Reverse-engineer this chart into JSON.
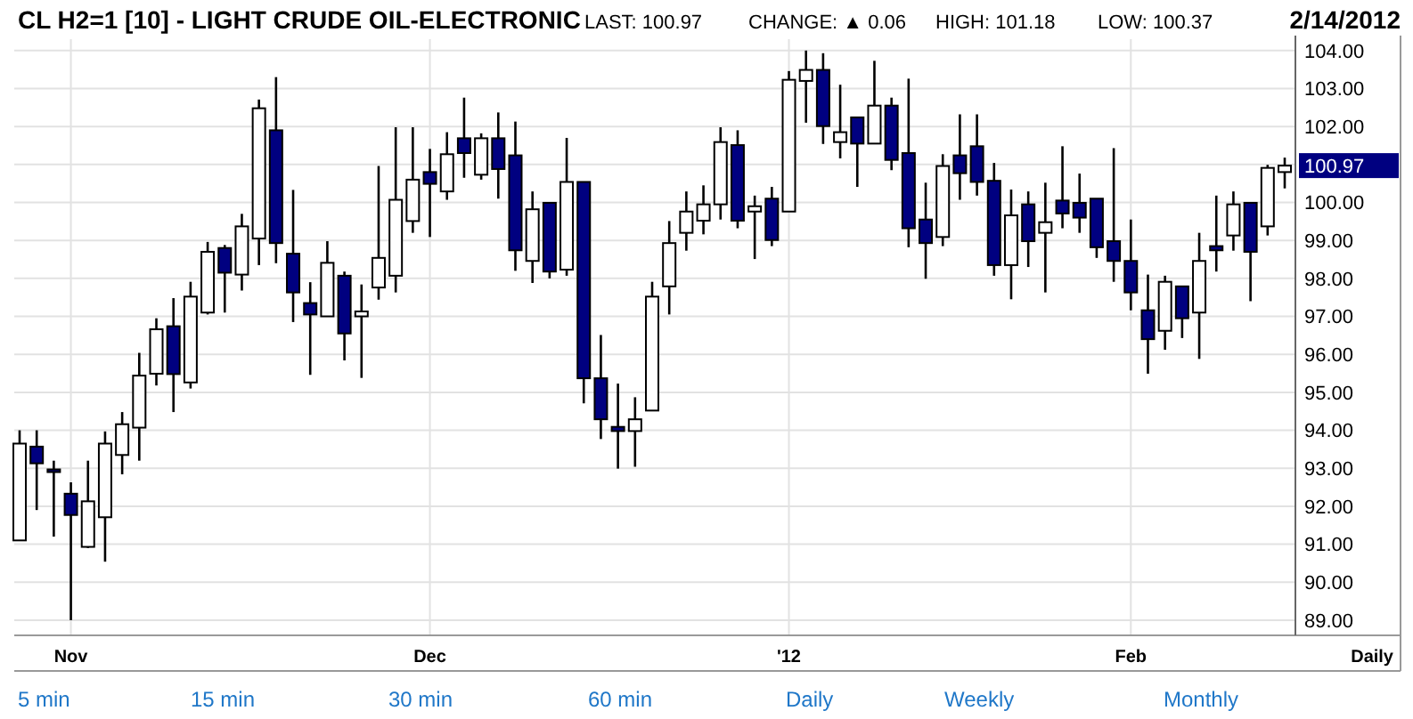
{
  "chart_data": {
    "type": "candlestick",
    "title": "CL H2=1 [10] - LIGHT CRUDE OIL-ELECTRONIC",
    "subtitle": "2/14/2012",
    "annotations": [
      "LAST: 100.97",
      "CHANGE: ▲ 0.06",
      "HIGH: 101.18",
      "LOW: 100.37",
      "Daily",
      "5 min",
      "15 min",
      "30 min",
      "60 min",
      "Daily",
      "Weekly",
      "Monthly",
      "100.97"
    ],
    "categories": [
      null,
      null,
      null,
      "Nov",
      null,
      null,
      null,
      null,
      null,
      null,
      null,
      null,
      null,
      null,
      null,
      null,
      null,
      null,
      null,
      null,
      null,
      null,
      null,
      null,
      "Dec",
      null,
      null,
      null,
      null,
      null,
      null,
      null,
      null,
      null,
      null,
      null,
      null,
      null,
      null,
      null,
      null,
      null,
      null,
      null,
      null,
      "'12",
      null,
      null,
      null,
      null,
      null,
      null,
      null,
      null,
      null,
      null,
      null,
      null,
      null,
      null,
      null,
      null,
      null,
      null,
      null,
      "Feb",
      null,
      null,
      null,
      null,
      null,
      null,
      null,
      null,
      null
    ],
    "colors": [
      "#ffffff",
      "#000080",
      "#000080",
      "#000080",
      "#ffffff",
      "#ffffff",
      "#ffffff",
      "#ffffff",
      "#ffffff",
      "#000080",
      "#ffffff",
      "#ffffff",
      "#000080",
      "#ffffff",
      "#ffffff",
      "#000080",
      "#000080",
      "#000080",
      "#ffffff",
      "#000080",
      "#ffffff",
      "#ffffff",
      "#ffffff",
      "#ffffff",
      "#000080",
      "#ffffff",
      "#000080",
      "#ffffff",
      "#000080",
      "#000080",
      "#ffffff",
      "#000080",
      "#ffffff",
      "#000080",
      "#000080",
      "#000080",
      "#ffffff",
      "#ffffff",
      "#ffffff",
      "#ffffff",
      "#ffffff",
      "#ffffff",
      "#000080",
      "#ffffff",
      "#000080",
      "#ffffff",
      "#ffffff",
      "#000080",
      "#ffffff",
      "#000080",
      "#ffffff",
      "#000080",
      "#000080",
      "#000080",
      "#ffffff",
      "#000080",
      "#000080",
      "#000080",
      "#ffffff",
      "#000080",
      "#ffffff",
      "#000080",
      "#000080",
      "#000080",
      "#000080",
      "#000080",
      "#000080",
      "#ffffff",
      "#000080",
      "#ffffff",
      "#000080",
      "#ffffff",
      "#000080",
      "#ffffff",
      "#ffffff"
    ],
    "ohlc": [
      [
        91.1,
        94.0,
        91.1,
        93.65
      ],
      [
        93.57,
        94.0,
        91.9,
        93.13
      ],
      [
        92.97,
        93.2,
        91.2,
        92.92
      ],
      [
        92.33,
        92.63,
        89.0,
        91.77
      ],
      [
        90.93,
        93.2,
        90.9,
        92.13
      ],
      [
        91.71,
        93.97,
        90.54,
        93.65
      ],
      [
        93.35,
        94.48,
        92.84,
        94.16
      ],
      [
        94.07,
        96.04,
        93.2,
        95.44
      ],
      [
        95.49,
        96.95,
        95.18,
        96.66
      ],
      [
        96.74,
        97.48,
        94.48,
        95.48
      ],
      [
        95.26,
        97.91,
        95.1,
        97.52
      ],
      [
        97.1,
        98.96,
        97.05,
        98.7
      ],
      [
        98.8,
        98.88,
        97.1,
        98.15
      ],
      [
        98.1,
        99.7,
        97.68,
        99.37
      ],
      [
        99.05,
        102.71,
        98.35,
        102.48
      ],
      [
        101.9,
        103.3,
        98.4,
        98.93
      ],
      [
        98.65,
        100.33,
        96.85,
        97.63
      ],
      [
        97.35,
        97.9,
        95.46,
        97.05
      ],
      [
        97.0,
        98.98,
        97.0,
        98.41
      ],
      [
        98.07,
        98.18,
        95.84,
        96.55
      ],
      [
        97.0,
        97.84,
        95.38,
        97.13
      ],
      [
        97.76,
        100.96,
        97.44,
        98.54
      ],
      [
        98.07,
        101.98,
        97.63,
        100.07
      ],
      [
        99.51,
        101.98,
        99.2,
        100.6
      ],
      [
        100.8,
        101.41,
        99.09,
        100.49
      ],
      [
        100.29,
        101.85,
        100.07,
        101.27
      ],
      [
        101.69,
        102.76,
        100.65,
        101.3
      ],
      [
        100.73,
        101.82,
        100.6,
        101.69
      ],
      [
        101.69,
        102.37,
        100.1,
        100.88
      ],
      [
        101.24,
        102.13,
        98.2,
        98.74
      ],
      [
        98.46,
        100.29,
        97.88,
        99.82
      ],
      [
        99.99,
        100.0,
        98.0,
        98.18
      ],
      [
        98.23,
        101.7,
        98.07,
        100.54
      ],
      [
        100.54,
        100.54,
        94.71,
        95.37
      ],
      [
        95.37,
        96.51,
        93.77,
        94.29
      ],
      [
        94.09,
        95.23,
        92.99,
        93.98
      ],
      [
        93.98,
        94.87,
        93.04,
        94.29
      ],
      [
        94.52,
        97.91,
        94.52,
        97.52
      ],
      [
        97.79,
        99.51,
        97.05,
        98.93
      ],
      [
        99.2,
        100.29,
        98.73,
        99.76
      ],
      [
        99.52,
        100.45,
        99.16,
        99.95
      ],
      [
        99.95,
        101.98,
        99.55,
        101.59
      ],
      [
        101.51,
        101.9,
        99.32,
        99.52
      ],
      [
        99.76,
        100.18,
        98.51,
        99.9
      ],
      [
        100.1,
        100.41,
        98.85,
        99.01
      ],
      [
        99.76,
        103.46,
        99.76,
        103.23
      ],
      [
        103.2,
        104.0,
        102.1,
        103.49
      ],
      [
        103.49,
        103.93,
        101.54,
        102.01
      ],
      [
        101.59,
        103.1,
        101.16,
        101.85
      ],
      [
        102.24,
        102.24,
        100.41,
        101.55
      ],
      [
        101.55,
        103.73,
        101.55,
        102.55
      ],
      [
        102.55,
        102.76,
        100.85,
        101.12
      ],
      [
        101.3,
        103.26,
        98.82,
        99.32
      ],
      [
        99.55,
        100.52,
        97.99,
        98.93
      ],
      [
        99.09,
        101.27,
        98.85,
        100.96
      ],
      [
        101.24,
        102.32,
        100.07,
        100.77
      ],
      [
        101.48,
        102.32,
        100.18,
        100.54
      ],
      [
        100.57,
        101.04,
        98.07,
        98.35
      ],
      [
        98.35,
        100.34,
        97.45,
        99.66
      ],
      [
        99.95,
        100.29,
        98.3,
        98.98
      ],
      [
        99.2,
        100.52,
        97.63,
        99.48
      ],
      [
        100.05,
        101.48,
        99.32,
        99.71
      ],
      [
        99.99,
        100.76,
        99.2,
        99.6
      ],
      [
        100.1,
        100.1,
        98.54,
        98.82
      ],
      [
        98.98,
        101.43,
        97.91,
        98.46
      ],
      [
        98.46,
        99.55,
        97.16,
        97.63
      ],
      [
        97.16,
        98.1,
        95.49,
        96.4
      ],
      [
        96.62,
        98.07,
        96.12,
        97.91
      ],
      [
        97.79,
        97.79,
        96.43,
        96.95
      ],
      [
        97.1,
        99.2,
        95.88,
        98.46
      ],
      [
        98.85,
        100.18,
        98.18,
        98.74
      ],
      [
        99.13,
        100.29,
        98.73,
        99.95
      ],
      [
        99.99,
        99.99,
        97.4,
        98.7
      ],
      [
        99.37,
        100.99,
        99.13,
        100.91
      ],
      [
        100.8,
        101.18,
        100.37,
        100.97
      ]
    ],
    "ylim": [
      88.6,
      104.3
    ],
    "yticks": [
      {
        "value": 89,
        "label": "89.00"
      },
      {
        "value": 90,
        "label": "90.00"
      },
      {
        "value": 91,
        "label": "91.00"
      },
      {
        "value": 92,
        "label": "92.00"
      },
      {
        "value": 93,
        "label": "93.00"
      },
      {
        "value": 94,
        "label": "94.00"
      },
      {
        "value": 95,
        "label": "95.00"
      },
      {
        "value": 96,
        "label": "96.00"
      },
      {
        "value": 97,
        "label": "97.00"
      },
      {
        "value": 98,
        "label": "98.00"
      },
      {
        "value": 99,
        "label": "99.00"
      },
      {
        "value": 100,
        "label": "100.00"
      },
      {
        "value": 101,
        "label": null
      },
      {
        "value": 102,
        "label": "102.00"
      },
      {
        "value": 103,
        "label": "103.00"
      },
      {
        "value": 104,
        "label": "104.00"
      }
    ],
    "grid": true
  }
}
